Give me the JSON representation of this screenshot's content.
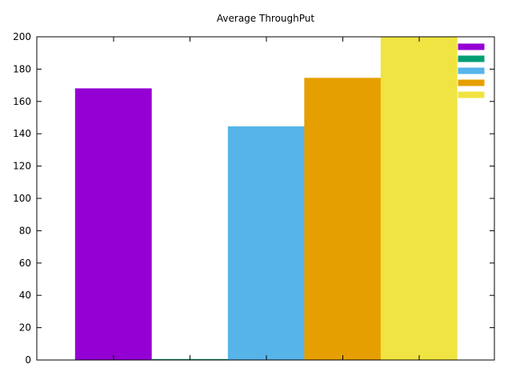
{
  "chart_data": {
    "type": "bar",
    "title": "Average ThroughPut",
    "xlabel": "",
    "ylabel": "",
    "ylim": [
      0,
      200
    ],
    "yticks": [
      0,
      20,
      40,
      60,
      80,
      100,
      120,
      140,
      160,
      180,
      200
    ],
    "x_tick_count": 5,
    "grid": false,
    "legend_position": "top-right",
    "series": [
      {
        "value": 168,
        "color": "#9400d3"
      },
      {
        "value": 0.5,
        "color": "#009e73"
      },
      {
        "value": 144.5,
        "color": "#56b4e9"
      },
      {
        "value": 174.5,
        "color": "#e69f00"
      },
      {
        "value": 200,
        "color": "#f0e442"
      }
    ]
  }
}
